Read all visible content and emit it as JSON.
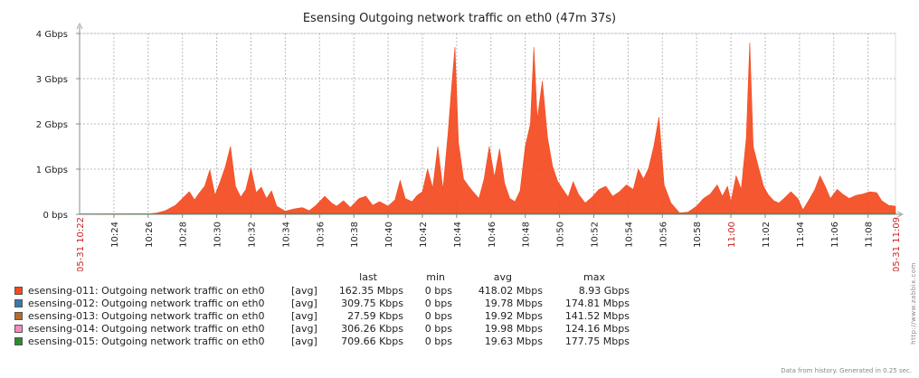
{
  "chart_data": {
    "type": "area",
    "title": "Esensing Outgoing network traffic on eth0 (47m 37s)",
    "y_unit": "Gbps",
    "ylim": [
      0,
      4
    ],
    "y_ticks": [
      "0 bps",
      "1 Gbps",
      "2 Gbps",
      "3 Gbps",
      "4 Gbps"
    ],
    "x_start_label": "05-31 10:22",
    "x_end_label": "05-31 11:09",
    "x_start_minute": 622,
    "x_end_minute": 669.6,
    "x_ticks": [
      "10:24",
      "10:26",
      "10:28",
      "10:30",
      "10:32",
      "10:34",
      "10:36",
      "10:38",
      "10:40",
      "10:42",
      "10:44",
      "10:46",
      "10:48",
      "10:50",
      "10:52",
      "10:54",
      "10:56",
      "10:58",
      "11:00",
      "11:02",
      "11:04",
      "11:06",
      "11:08"
    ],
    "x_tick_highlight": [
      "11:00"
    ],
    "series": [
      {
        "name": "esensing-011: Outgoing network traffic on eth0",
        "color": "#f44a1e",
        "points": [
          [
            622,
            0.01
          ],
          [
            626,
            0.01
          ],
          [
            626.5,
            0.03
          ],
          [
            627,
            0.08
          ],
          [
            627.6,
            0.2
          ],
          [
            628,
            0.35
          ],
          [
            628.4,
            0.5
          ],
          [
            628.7,
            0.32
          ],
          [
            629,
            0.48
          ],
          [
            629.3,
            0.62
          ],
          [
            629.6,
            0.98
          ],
          [
            629.9,
            0.42
          ],
          [
            630.2,
            0.72
          ],
          [
            630.5,
            1.05
          ],
          [
            630.8,
            1.5
          ],
          [
            631.1,
            0.62
          ],
          [
            631.4,
            0.38
          ],
          [
            631.7,
            0.55
          ],
          [
            632,
            1.02
          ],
          [
            632.3,
            0.48
          ],
          [
            632.6,
            0.6
          ],
          [
            632.9,
            0.35
          ],
          [
            633.2,
            0.52
          ],
          [
            633.5,
            0.18
          ],
          [
            634,
            0.07
          ],
          [
            634.5,
            0.12
          ],
          [
            635,
            0.15
          ],
          [
            635.4,
            0.08
          ],
          [
            635.8,
            0.2
          ],
          [
            636.3,
            0.4
          ],
          [
            636.7,
            0.25
          ],
          [
            637,
            0.18
          ],
          [
            637.4,
            0.3
          ],
          [
            637.8,
            0.15
          ],
          [
            638.3,
            0.35
          ],
          [
            638.7,
            0.4
          ],
          [
            639.1,
            0.2
          ],
          [
            639.5,
            0.28
          ],
          [
            640,
            0.18
          ],
          [
            640.4,
            0.32
          ],
          [
            640.7,
            0.75
          ],
          [
            641,
            0.35
          ],
          [
            641.4,
            0.28
          ],
          [
            641.7,
            0.42
          ],
          [
            642,
            0.5
          ],
          [
            642.3,
            1.0
          ],
          [
            642.6,
            0.58
          ],
          [
            642.9,
            1.5
          ],
          [
            643.2,
            0.55
          ],
          [
            643.5,
            1.8
          ],
          [
            643.7,
            2.8
          ],
          [
            643.9,
            3.7
          ],
          [
            644.1,
            1.6
          ],
          [
            644.4,
            0.78
          ],
          [
            644.7,
            0.62
          ],
          [
            645,
            0.48
          ],
          [
            645.3,
            0.35
          ],
          [
            645.6,
            0.78
          ],
          [
            645.9,
            1.5
          ],
          [
            646.2,
            0.82
          ],
          [
            646.5,
            1.45
          ],
          [
            646.8,
            0.68
          ],
          [
            647.1,
            0.35
          ],
          [
            647.4,
            0.28
          ],
          [
            647.7,
            0.52
          ],
          [
            648,
            1.5
          ],
          [
            648.3,
            2.0
          ],
          [
            648.5,
            3.7
          ],
          [
            648.7,
            2.1
          ],
          [
            649,
            2.95
          ],
          [
            649.3,
            1.7
          ],
          [
            649.6,
            1.05
          ],
          [
            649.9,
            0.72
          ],
          [
            650.2,
            0.55
          ],
          [
            650.5,
            0.38
          ],
          [
            650.8,
            0.72
          ],
          [
            651.1,
            0.45
          ],
          [
            651.5,
            0.25
          ],
          [
            651.9,
            0.38
          ],
          [
            652.3,
            0.55
          ],
          [
            652.7,
            0.62
          ],
          [
            653.1,
            0.4
          ],
          [
            653.5,
            0.5
          ],
          [
            653.9,
            0.65
          ],
          [
            654.3,
            0.55
          ],
          [
            654.6,
            1.0
          ],
          [
            654.9,
            0.78
          ],
          [
            655.2,
            1.02
          ],
          [
            655.5,
            1.5
          ],
          [
            655.8,
            2.15
          ],
          [
            656.1,
            0.65
          ],
          [
            656.5,
            0.25
          ],
          [
            657,
            0.03
          ],
          [
            657.5,
            0.05
          ],
          [
            658,
            0.18
          ],
          [
            658.4,
            0.35
          ],
          [
            658.8,
            0.45
          ],
          [
            659.2,
            0.65
          ],
          [
            659.5,
            0.4
          ],
          [
            659.8,
            0.62
          ],
          [
            660,
            0.28
          ],
          [
            660.3,
            0.85
          ],
          [
            660.6,
            0.55
          ],
          [
            660.9,
            1.7
          ],
          [
            661.1,
            3.8
          ],
          [
            661.3,
            1.5
          ],
          [
            661.6,
            1.05
          ],
          [
            661.9,
            0.62
          ],
          [
            662.2,
            0.42
          ],
          [
            662.5,
            0.3
          ],
          [
            662.8,
            0.25
          ],
          [
            663.1,
            0.35
          ],
          [
            663.5,
            0.5
          ],
          [
            663.9,
            0.35
          ],
          [
            664.2,
            0.1
          ],
          [
            664.6,
            0.35
          ],
          [
            664.9,
            0.55
          ],
          [
            665.2,
            0.85
          ],
          [
            665.5,
            0.62
          ],
          [
            665.8,
            0.35
          ],
          [
            666.2,
            0.55
          ],
          [
            666.5,
            0.45
          ],
          [
            666.9,
            0.35
          ],
          [
            667.3,
            0.42
          ],
          [
            667.7,
            0.45
          ],
          [
            668.1,
            0.5
          ],
          [
            668.5,
            0.48
          ],
          [
            668.8,
            0.3
          ],
          [
            669.2,
            0.2
          ],
          [
            669.6,
            0.18
          ]
        ]
      },
      {
        "name": "esensing-012: Outgoing network traffic on eth0",
        "color": "#3b79a8",
        "points": []
      },
      {
        "name": "esensing-013: Outgoing network traffic on eth0",
        "color": "#b86a2b",
        "points": []
      },
      {
        "name": "esensing-014: Outgoing network traffic on eth0",
        "color": "#ff88bb",
        "points": []
      },
      {
        "name": "esensing-015: Outgoing network traffic on eth0",
        "color": "#2e8b2e",
        "points": [
          [
            622,
            0.01
          ],
          [
            630,
            0.02
          ],
          [
            640,
            0.02
          ],
          [
            650,
            0.02
          ],
          [
            660,
            0.02
          ],
          [
            669.6,
            0.02
          ]
        ]
      }
    ],
    "legend": {
      "headers": {
        "last": "last",
        "min": "min",
        "avg": "avg",
        "max": "max"
      },
      "rows": [
        {
          "name": "esensing-011: Outgoing network traffic on eth0",
          "fn": "[avg]",
          "last": "162.35 Mbps",
          "min": "0 bps",
          "avg": "418.02 Mbps",
          "max": "8.93 Gbps",
          "color": "#f44a1e"
        },
        {
          "name": "esensing-012: Outgoing network traffic on eth0",
          "fn": "[avg]",
          "last": "309.75 Kbps",
          "min": "0 bps",
          "avg": "19.78 Mbps",
          "max": "174.81 Mbps",
          "color": "#3b79a8"
        },
        {
          "name": "esensing-013: Outgoing network traffic on eth0",
          "fn": "[avg]",
          "last": "27.59 Kbps",
          "min": "0 bps",
          "avg": "19.92 Mbps",
          "max": "141.52 Mbps",
          "color": "#b86a2b"
        },
        {
          "name": "esensing-014: Outgoing network traffic on eth0",
          "fn": "[avg]",
          "last": "306.26 Kbps",
          "min": "0 bps",
          "avg": "19.98 Mbps",
          "max": "124.16 Mbps",
          "color": "#ff88bb"
        },
        {
          "name": "esensing-015: Outgoing network traffic on eth0",
          "fn": "[avg]",
          "last": "709.66 Kbps",
          "min": "0 bps",
          "avg": "19.63 Mbps",
          "max": "177.75 Mbps",
          "color": "#2e8b2e"
        }
      ]
    }
  },
  "footer": "Data from history. Generated in 0.25 sec.",
  "watermark": "http://www.zabbix.com"
}
